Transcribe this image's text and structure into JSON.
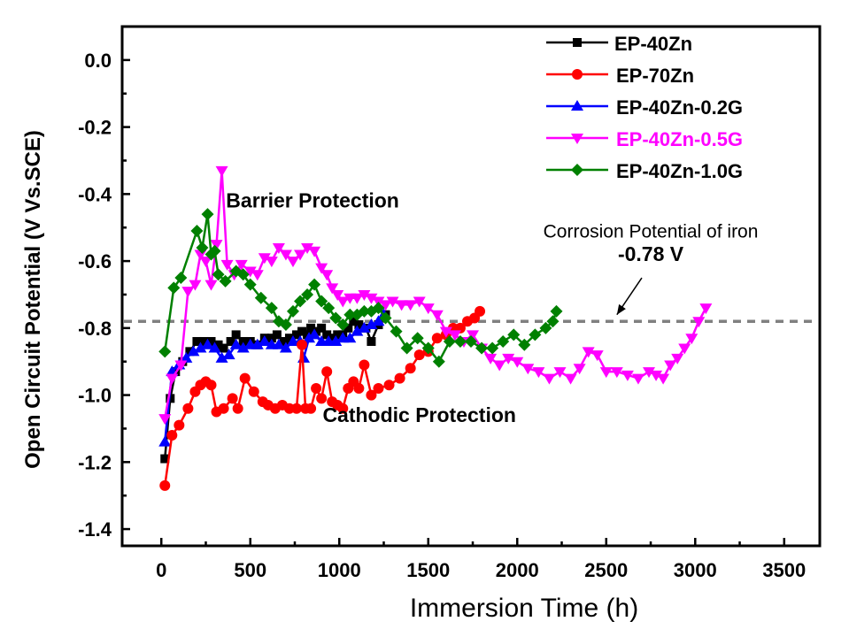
{
  "chart_data": {
    "type": "line",
    "title": "",
    "xlabel": "Immersion Time (h)",
    "ylabel": "Open Circuit Potential (V Vs.SCE)",
    "xlim": [
      -220,
      3700
    ],
    "ylim": [
      -1.45,
      0.1
    ],
    "xticks": [
      0,
      500,
      1000,
      1500,
      2000,
      2500,
      3000,
      3500
    ],
    "xtick_labels": [
      "0",
      "500",
      "1000",
      "1500",
      "2000",
      "2500",
      "3000",
      "3500"
    ],
    "yticks": [
      0.0,
      -0.2,
      -0.4,
      -0.6,
      -0.8,
      -1.0,
      -1.2,
      -1.4
    ],
    "ytick_labels": [
      "0.0",
      "-0.2",
      "-0.4",
      "-0.6",
      "-0.8",
      "-1.0",
      "-1.2",
      "-1.4"
    ],
    "grid": false,
    "legend_position": "top-right",
    "reference_line": {
      "y": -0.78,
      "color": "#808080",
      "style": "dashed"
    },
    "annotations": [
      {
        "text": "Barrier Protection",
        "x": 850,
        "y": -0.44,
        "bold": true
      },
      {
        "text": "Cathodic Protection",
        "x": 1450,
        "y": -1.08,
        "bold": true
      },
      {
        "text": "Corrosion Potential of iron",
        "x": 2750,
        "y": -0.53,
        "bold": false
      },
      {
        "text": "-0.78 V",
        "x": 2750,
        "y": -0.6,
        "bold": true
      }
    ],
    "arrow": {
      "from": [
        2700,
        -0.65
      ],
      "to": [
        2560,
        -0.76
      ]
    },
    "series": [
      {
        "name": "EP-40Zn",
        "color": "#000000",
        "marker": "square",
        "legend_text_color": "#000000",
        "x": [
          20,
          50,
          80,
          120,
          160,
          200,
          240,
          280,
          320,
          350,
          390,
          420,
          460,
          500,
          540,
          580,
          620,
          650,
          690,
          720,
          760,
          790,
          820,
          840,
          870,
          900,
          930,
          960,
          990,
          1020,
          1050,
          1080,
          1110,
          1150,
          1180,
          1220,
          1260
        ],
        "y": [
          -1.19,
          -1.01,
          -0.93,
          -0.9,
          -0.87,
          -0.84,
          -0.84,
          -0.84,
          -0.85,
          -0.86,
          -0.84,
          -0.82,
          -0.84,
          -0.84,
          -0.85,
          -0.83,
          -0.83,
          -0.82,
          -0.84,
          -0.83,
          -0.82,
          -0.81,
          -0.82,
          -0.8,
          -0.81,
          -0.8,
          -0.82,
          -0.83,
          -0.82,
          -0.82,
          -0.8,
          -0.78,
          -0.79,
          -0.8,
          -0.84,
          -0.79,
          -0.76
        ]
      },
      {
        "name": "EP-70Zn",
        "color": "#ff0000",
        "marker": "circle",
        "legend_text_color": "#000000",
        "x": [
          20,
          60,
          100,
          150,
          190,
          220,
          250,
          280,
          310,
          350,
          400,
          430,
          470,
          520,
          570,
          600,
          640,
          680,
          720,
          760,
          790,
          810,
          840,
          870,
          900,
          930,
          960,
          990,
          1020,
          1050,
          1080,
          1110,
          1140,
          1180,
          1220,
          1280,
          1340,
          1400,
          1450,
          1500,
          1550,
          1600,
          1640,
          1680,
          1720,
          1760,
          1790
        ],
        "y": [
          -1.27,
          -1.12,
          -1.09,
          -1.04,
          -0.99,
          -0.97,
          -0.96,
          -0.97,
          -1.05,
          -1.04,
          -1.01,
          -1.04,
          -0.95,
          -0.99,
          -1.02,
          -1.03,
          -1.04,
          -1.03,
          -1.04,
          -1.04,
          -0.85,
          -1.04,
          -1.04,
          -0.98,
          -1.01,
          -0.93,
          -1.02,
          -1.03,
          -1.04,
          -0.98,
          -0.96,
          -0.98,
          -0.91,
          -1.0,
          -0.98,
          -0.97,
          -0.95,
          -0.92,
          -0.88,
          -0.87,
          -0.83,
          -0.82,
          -0.8,
          -0.8,
          -0.78,
          -0.77,
          -0.75
        ]
      },
      {
        "name": "EP-40Zn-0.2G",
        "color": "#0000ff",
        "marker": "triangle-up",
        "legend_text_color": "#000000",
        "x": [
          20,
          60,
          100,
          140,
          180,
          220,
          260,
          300,
          340,
          380,
          420,
          460,
          500,
          540,
          580,
          620,
          660,
          700,
          740,
          780,
          800,
          830,
          860,
          900,
          940,
          980,
          1020,
          1060,
          1100,
          1140,
          1180,
          1220,
          1250
        ],
        "y": [
          -1.14,
          -0.93,
          -0.91,
          -0.89,
          -0.87,
          -0.86,
          -0.85,
          -0.86,
          -0.89,
          -0.88,
          -0.85,
          -0.86,
          -0.85,
          -0.85,
          -0.84,
          -0.85,
          -0.85,
          -0.86,
          -0.84,
          -0.84,
          -0.89,
          -0.83,
          -0.82,
          -0.84,
          -0.84,
          -0.84,
          -0.83,
          -0.83,
          -0.81,
          -0.8,
          -0.79,
          -0.78,
          -0.76
        ]
      },
      {
        "name": "EP-40Zn-0.5G",
        "color": "#ff00ff",
        "marker": "triangle-down",
        "legend_text_color": "#ff00ff",
        "x": [
          20,
          60,
          110,
          150,
          190,
          220,
          250,
          280,
          310,
          340,
          370,
          410,
          450,
          500,
          540,
          580,
          620,
          660,
          700,
          740,
          780,
          820,
          860,
          900,
          930,
          960,
          990,
          1020,
          1060,
          1100,
          1140,
          1180,
          1220,
          1260,
          1300,
          1350,
          1400,
          1450,
          1500,
          1550,
          1600,
          1650,
          1700,
          1750,
          1800,
          1850,
          1900,
          1950,
          2000,
          2060,
          2120,
          2180,
          2240,
          2300,
          2350,
          2400,
          2450,
          2500,
          2560,
          2620,
          2680,
          2740,
          2780,
          2820,
          2860,
          2900,
          2940,
          2980,
          3020,
          3060
        ],
        "y": [
          -1.07,
          -0.95,
          -0.91,
          -0.69,
          -0.67,
          -0.58,
          -0.6,
          -0.67,
          -0.55,
          -0.33,
          -0.61,
          -0.64,
          -0.61,
          -0.63,
          -0.64,
          -0.59,
          -0.6,
          -0.56,
          -0.58,
          -0.6,
          -0.58,
          -0.56,
          -0.57,
          -0.62,
          -0.64,
          -0.68,
          -0.7,
          -0.72,
          -0.71,
          -0.71,
          -0.7,
          -0.71,
          -0.72,
          -0.73,
          -0.72,
          -0.73,
          -0.73,
          -0.72,
          -0.74,
          -0.76,
          -0.81,
          -0.82,
          -0.84,
          -0.82,
          -0.86,
          -0.89,
          -0.91,
          -0.89,
          -0.9,
          -0.92,
          -0.93,
          -0.95,
          -0.93,
          -0.95,
          -0.92,
          -0.87,
          -0.88,
          -0.93,
          -0.93,
          -0.94,
          -0.95,
          -0.93,
          -0.94,
          -0.95,
          -0.91,
          -0.89,
          -0.86,
          -0.83,
          -0.78,
          -0.74
        ]
      },
      {
        "name": "EP-40Zn-1.0G",
        "color": "#008000",
        "marker": "diamond",
        "legend_text_color": "#000000",
        "x": [
          20,
          70,
          110,
          200,
          230,
          260,
          280,
          300,
          320,
          360,
          420,
          460,
          500,
          560,
          620,
          660,
          700,
          740,
          780,
          820,
          860,
          900,
          940,
          980,
          1020,
          1060,
          1100,
          1140,
          1180,
          1220,
          1260,
          1320,
          1380,
          1440,
          1500,
          1560,
          1620,
          1680,
          1740,
          1800,
          1860,
          1920,
          1980,
          2040,
          2100,
          2160,
          2200,
          2220
        ],
        "y": [
          -0.87,
          -0.68,
          -0.65,
          -0.51,
          -0.56,
          -0.46,
          -0.58,
          -0.57,
          -0.64,
          -0.66,
          -0.63,
          -0.64,
          -0.67,
          -0.71,
          -0.74,
          -0.78,
          -0.79,
          -0.75,
          -0.72,
          -0.7,
          -0.67,
          -0.72,
          -0.74,
          -0.77,
          -0.79,
          -0.76,
          -0.76,
          -0.75,
          -0.75,
          -0.74,
          -0.77,
          -0.81,
          -0.86,
          -0.83,
          -0.86,
          -0.9,
          -0.84,
          -0.84,
          -0.84,
          -0.86,
          -0.86,
          -0.84,
          -0.82,
          -0.85,
          -0.82,
          -0.8,
          -0.78,
          -0.75
        ]
      }
    ]
  }
}
